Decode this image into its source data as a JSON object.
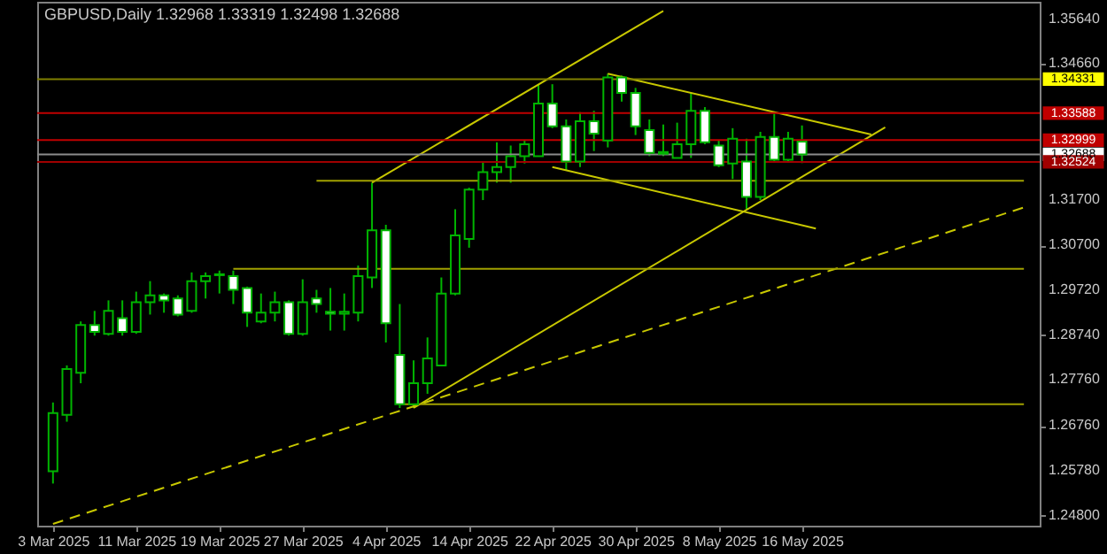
{
  "chart_data": {
    "type": "candlestick",
    "title": "GBPUSD,Daily  1.32968 1.33319 1.32498 1.32688",
    "categories": [
      "3 Mar 2025",
      null,
      null,
      null,
      null,
      null,
      "11 Mar 2025",
      null,
      null,
      null,
      null,
      null,
      "19 Mar 2025",
      null,
      null,
      null,
      null,
      null,
      "27 Mar 2025",
      null,
      null,
      null,
      null,
      null,
      "4 Apr 2025",
      null,
      null,
      null,
      null,
      null,
      "14 Apr 2025",
      null,
      null,
      null,
      null,
      null,
      "22 Apr 2025",
      null,
      null,
      null,
      null,
      null,
      "30 Apr 2025",
      null,
      null,
      null,
      null,
      null,
      "8 May 2025",
      null,
      null,
      null,
      null,
      null,
      "16 May 2025",
      null,
      null,
      null,
      null,
      null,
      null,
      null,
      null,
      null,
      null,
      null,
      null,
      null,
      null,
      null,
      null
    ],
    "color": "#00b400",
    "ohlc": [
      [
        1.2577,
        1.2727,
        1.255,
        1.2704
      ],
      [
        1.27,
        1.2808,
        1.2685,
        1.28
      ],
      [
        1.2792,
        1.2904,
        1.2769,
        1.2896
      ],
      [
        1.2896,
        1.2927,
        1.2873,
        1.2881
      ],
      [
        1.2877,
        1.295,
        1.2873,
        1.2927
      ],
      [
        1.2911,
        1.295,
        1.2873,
        1.2881
      ],
      [
        1.2881,
        1.2969,
        1.2877,
        1.2946
      ],
      [
        1.2946,
        1.2992,
        1.2919,
        1.2961
      ],
      [
        1.2961,
        1.2965,
        1.2923,
        1.295
      ],
      [
        1.2954,
        1.2961,
        1.2915,
        1.2919
      ],
      [
        1.2927,
        1.3011,
        1.2923,
        1.2992
      ],
      [
        1.2992,
        1.3011,
        1.2954,
        1.3003
      ],
      [
        1.3005,
        1.3015,
        1.2965,
        1.3007
      ],
      [
        1.3003,
        1.3015,
        1.2942,
        1.2973
      ],
      [
        1.2977,
        1.298,
        1.2892,
        1.2923
      ],
      [
        1.2904,
        1.2965,
        1.29,
        1.2923
      ],
      [
        1.2923,
        1.2969,
        1.2904,
        1.2946
      ],
      [
        1.2946,
        1.295,
        1.2873,
        1.2877
      ],
      [
        1.2877,
        1.2996,
        1.2873,
        1.2946
      ],
      [
        1.2954,
        1.2973,
        1.2923,
        1.2942
      ],
      [
        1.2925,
        1.2977,
        1.2884,
        1.2921
      ],
      [
        1.2921,
        1.2965,
        1.2884,
        1.2925
      ],
      [
        1.2923,
        1.3026,
        1.2904,
        1.3003
      ],
      [
        1.3,
        1.3207,
        1.2977,
        1.3103
      ],
      [
        1.3103,
        1.3115,
        1.2858,
        1.29
      ],
      [
        1.2831,
        1.2942,
        1.2715,
        1.2723
      ],
      [
        1.2723,
        1.2819,
        1.2715,
        1.2769
      ],
      [
        1.2769,
        1.2869,
        1.2746,
        1.2823
      ],
      [
        1.2808,
        1.3,
        1.2808,
        1.2965
      ],
      [
        1.2965,
        1.3149,
        1.2961,
        1.3092
      ],
      [
        1.3084,
        1.3196,
        1.3065,
        1.3192
      ],
      [
        1.3192,
        1.3253,
        1.3169,
        1.323
      ],
      [
        1.323,
        1.3295,
        1.3207,
        1.3241
      ],
      [
        1.3241,
        1.3288,
        1.3207,
        1.3265
      ],
      [
        1.3265,
        1.3299,
        1.3249,
        1.3291
      ],
      [
        1.3265,
        1.3422,
        1.3265,
        1.338
      ],
      [
        1.338,
        1.3422,
        1.3326,
        1.333
      ],
      [
        1.333,
        1.3345,
        1.3234,
        1.3253
      ],
      [
        1.3253,
        1.3361,
        1.3241,
        1.3341
      ],
      [
        1.3341,
        1.3364,
        1.3276,
        1.3314
      ],
      [
        1.3299,
        1.3445,
        1.3284,
        1.3437
      ],
      [
        1.3437,
        1.3441,
        1.3384,
        1.3403
      ],
      [
        1.3403,
        1.3414,
        1.3311,
        1.333
      ],
      [
        1.3322,
        1.3345,
        1.3265,
        1.3272
      ],
      [
        1.3274,
        1.3334,
        1.3265,
        1.327
      ],
      [
        1.3261,
        1.3338,
        1.3261,
        1.3291
      ],
      [
        1.3291,
        1.3403,
        1.3261,
        1.3364
      ],
      [
        1.3364,
        1.3372,
        1.3291,
        1.3295
      ],
      [
        1.3288,
        1.3299,
        1.3241,
        1.3245
      ],
      [
        1.3249,
        1.3326,
        1.3215,
        1.3303
      ],
      [
        1.3253,
        1.3303,
        1.3149,
        1.3176
      ],
      [
        1.3176,
        1.3318,
        1.3169,
        1.3307
      ],
      [
        1.3307,
        1.3361,
        1.3253,
        1.3257
      ],
      [
        1.3257,
        1.3318,
        1.3253,
        1.3303
      ],
      [
        1.32968,
        1.33319,
        1.32498,
        1.32688
      ],
      null,
      null,
      null,
      null,
      null,
      null,
      null,
      null,
      null,
      null,
      null,
      null,
      null,
      null,
      null,
      null
    ],
    "series": [
      {
        "type": "line",
        "color": "#c8c800",
        "line_style": "solid",
        "values": [
          null,
          null,
          null,
          null,
          null,
          null,
          null,
          null,
          null,
          null,
          null,
          null,
          null,
          null,
          null,
          null,
          null,
          null,
          null,
          null,
          null,
          null,
          null,
          1.3207,
          null,
          null,
          null,
          null,
          null,
          null,
          null,
          null,
          null,
          null,
          null,
          null,
          null,
          null,
          null,
          null,
          null,
          null,
          null,
          null,
          1.3582,
          null,
          null,
          null,
          null,
          null,
          null,
          null,
          null,
          null,
          null,
          null,
          null,
          null,
          null,
          null,
          null,
          null,
          null,
          null,
          null,
          null,
          null,
          null,
          null,
          null,
          null
        ]
      },
      {
        "type": "line",
        "color": "#c8c800",
        "line_style": "solid",
        "values": [
          null,
          null,
          null,
          null,
          null,
          null,
          null,
          null,
          null,
          null,
          null,
          null,
          null,
          null,
          null,
          null,
          null,
          null,
          null,
          null,
          null,
          null,
          null,
          null,
          null,
          null,
          1.2715,
          null,
          null,
          null,
          null,
          null,
          null,
          null,
          null,
          null,
          null,
          null,
          null,
          null,
          null,
          null,
          null,
          null,
          null,
          null,
          null,
          null,
          null,
          null,
          null,
          null,
          null,
          null,
          null,
          null,
          null,
          null,
          null,
          null,
          1.3328,
          null,
          null,
          null,
          null,
          null,
          null,
          null,
          null,
          null,
          null
        ]
      },
      {
        "type": "line",
        "color": "#c8c800",
        "line_style": "dashed",
        "values": [
          1.2462,
          null,
          null,
          null,
          null,
          null,
          null,
          null,
          null,
          null,
          null,
          null,
          null,
          null,
          null,
          null,
          null,
          null,
          null,
          null,
          null,
          null,
          null,
          null,
          null,
          null,
          null,
          null,
          null,
          null,
          null,
          null,
          null,
          null,
          null,
          null,
          null,
          null,
          null,
          null,
          null,
          null,
          null,
          null,
          null,
          null,
          null,
          null,
          null,
          null,
          null,
          null,
          null,
          null,
          null,
          null,
          null,
          null,
          null,
          null,
          null,
          null,
          null,
          null,
          null,
          null,
          null,
          null,
          null,
          null,
          1.3153
        ]
      },
      {
        "type": "line",
        "color": "#c8c800",
        "line_style": "solid",
        "values": [
          null,
          null,
          null,
          null,
          null,
          null,
          null,
          null,
          null,
          null,
          null,
          null,
          null,
          null,
          null,
          null,
          null,
          null,
          null,
          null,
          null,
          null,
          null,
          null,
          null,
          null,
          null,
          null,
          null,
          null,
          null,
          null,
          null,
          null,
          null,
          null,
          null,
          null,
          null,
          null,
          1.3445,
          null,
          null,
          null,
          null,
          null,
          null,
          null,
          null,
          null,
          null,
          null,
          null,
          null,
          null,
          null,
          null,
          null,
          null,
          1.3312,
          null,
          null,
          null,
          null,
          null,
          null,
          null,
          null,
          null,
          null,
          null
        ]
      },
      {
        "type": "line",
        "color": "#c8c800",
        "line_style": "solid",
        "values": [
          null,
          null,
          null,
          null,
          null,
          null,
          null,
          null,
          null,
          null,
          null,
          null,
          null,
          null,
          null,
          null,
          null,
          null,
          null,
          null,
          null,
          null,
          null,
          null,
          null,
          null,
          null,
          null,
          null,
          null,
          null,
          null,
          null,
          null,
          null,
          null,
          1.3241,
          null,
          null,
          null,
          null,
          null,
          null,
          null,
          null,
          null,
          null,
          null,
          null,
          null,
          null,
          null,
          null,
          null,
          null,
          1.3107,
          null,
          null,
          null,
          null,
          null,
          null,
          null,
          null,
          null,
          null,
          null,
          null,
          null,
          null,
          null
        ]
      },
      {
        "type": "line",
        "color": "#a0a000",
        "line_style": "solid",
        "values": [
          null,
          null,
          null,
          null,
          null,
          null,
          null,
          null,
          null,
          null,
          null,
          null,
          null,
          null,
          null,
          null,
          null,
          null,
          null,
          1.3211,
          null,
          null,
          null,
          null,
          null,
          null,
          null,
          null,
          null,
          null,
          null,
          null,
          null,
          null,
          null,
          null,
          null,
          null,
          null,
          null,
          null,
          null,
          null,
          null,
          null,
          null,
          null,
          null,
          null,
          null,
          null,
          null,
          null,
          null,
          null,
          null,
          null,
          null,
          null,
          null,
          null,
          null,
          null,
          null,
          null,
          null,
          null,
          null,
          null,
          null,
          1.3211
        ]
      },
      {
        "type": "line",
        "color": "#a0a000",
        "line_style": "solid",
        "values": [
          null,
          null,
          null,
          null,
          null,
          null,
          null,
          null,
          null,
          null,
          null,
          null,
          null,
          1.3019,
          null,
          null,
          null,
          null,
          null,
          null,
          null,
          null,
          null,
          null,
          null,
          null,
          null,
          null,
          null,
          null,
          null,
          null,
          null,
          null,
          null,
          null,
          null,
          null,
          null,
          null,
          null,
          null,
          null,
          null,
          null,
          null,
          null,
          null,
          null,
          null,
          null,
          null,
          null,
          null,
          null,
          null,
          null,
          null,
          null,
          null,
          null,
          null,
          null,
          null,
          null,
          null,
          null,
          null,
          null,
          null,
          1.3019
        ]
      },
      {
        "type": "line",
        "color": "#a0a000",
        "line_style": "solid",
        "values": [
          null,
          null,
          null,
          null,
          null,
          null,
          null,
          null,
          null,
          null,
          null,
          null,
          null,
          null,
          null,
          null,
          null,
          null,
          null,
          null,
          null,
          null,
          null,
          null,
          null,
          1.2723,
          null,
          null,
          null,
          null,
          null,
          null,
          null,
          null,
          null,
          null,
          null,
          null,
          null,
          null,
          null,
          null,
          null,
          null,
          null,
          null,
          null,
          null,
          null,
          null,
          null,
          null,
          null,
          null,
          null,
          null,
          null,
          null,
          null,
          null,
          null,
          null,
          null,
          null,
          null,
          null,
          null,
          null,
          null,
          null,
          1.2723
        ]
      }
    ],
    "ref_lines": [
      {
        "axis": "y",
        "value": 1.34331,
        "label": "1.34331",
        "color": "#808000"
      },
      {
        "axis": "y",
        "value": 1.33588,
        "label": "1.33588",
        "color": "#c00000"
      },
      {
        "axis": "y",
        "value": 1.32999,
        "label": "1.32999",
        "color": "#c00000"
      },
      {
        "axis": "y",
        "value": 1.32688,
        "label": "1.32688",
        "color": "#8c8c8c"
      },
      {
        "axis": "y",
        "value": 1.32524,
        "label": "1.32524",
        "color": "#a00000"
      }
    ],
    "ylim": [
      1.2458,
      1.3602
    ],
    "yticks": [
      {
        "value": 1.3564,
        "label": "1.35640"
      },
      {
        "value": 1.3466,
        "label": "1.34660"
      },
      {
        "value": 1.317,
        "label": "1.31700"
      },
      {
        "value": 1.307,
        "label": "1.30700"
      },
      {
        "value": 1.2972,
        "label": "1.29720"
      },
      {
        "value": 1.2874,
        "label": "1.28740"
      },
      {
        "value": 1.2776,
        "label": "1.27760"
      },
      {
        "value": 1.2676,
        "label": "1.26760"
      },
      {
        "value": 1.2578,
        "label": "1.25780"
      },
      {
        "value": 1.248,
        "label": "1.24800"
      }
    ],
    "grid": false
  }
}
